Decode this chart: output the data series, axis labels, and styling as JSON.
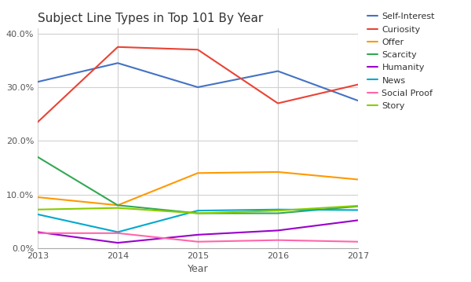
{
  "title": "Subject Line Types in Top 101 By Year",
  "xlabel": "Year",
  "years": [
    2013,
    2014,
    2015,
    2016,
    2017
  ],
  "series": {
    "Self-Interest": {
      "values": [
        0.31,
        0.345,
        0.3,
        0.33,
        0.275
      ],
      "color": "#4472c4"
    },
    "Curiosity": {
      "values": [
        0.235,
        0.375,
        0.37,
        0.27,
        0.305
      ],
      "color": "#ea4335"
    },
    "Offer": {
      "values": [
        0.095,
        0.08,
        0.14,
        0.142,
        0.128
      ],
      "color": "#ff9900"
    },
    "Scarcity": {
      "values": [
        0.17,
        0.08,
        0.065,
        0.065,
        0.078
      ],
      "color": "#33a852"
    },
    "Humanity": {
      "values": [
        0.03,
        0.01,
        0.025,
        0.033,
        0.052
      ],
      "color": "#9900cc"
    },
    "News": {
      "values": [
        0.063,
        0.03,
        0.07,
        0.072,
        0.071
      ],
      "color": "#00aacc"
    },
    "Social Proof": {
      "values": [
        0.028,
        0.028,
        0.012,
        0.015,
        0.012
      ],
      "color": "#ff66aa"
    },
    "Story": {
      "values": [
        0.072,
        0.075,
        0.065,
        0.07,
        0.079
      ],
      "color": "#88cc00"
    }
  },
  "ylim": [
    0.0,
    0.41
  ],
  "yticks": [
    0.0,
    0.1,
    0.2,
    0.3,
    0.4
  ],
  "background_color": "#ffffff",
  "plot_bg_color": "#ffffff",
  "grid_color": "#d0d0d0",
  "title_fontsize": 11,
  "axis_label_fontsize": 9,
  "tick_fontsize": 8,
  "legend_fontsize": 8
}
